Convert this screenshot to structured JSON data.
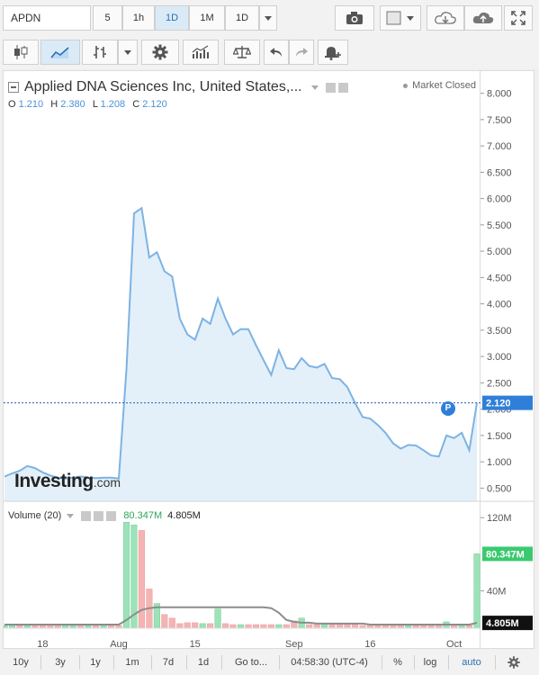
{
  "toolbar": {
    "symbol": "APDN",
    "intervals": [
      "5",
      "1h",
      "1D",
      "1M",
      "1D"
    ],
    "selected_interval": "1D"
  },
  "legend": {
    "title": "Applied DNA Sciences Inc, United States,...",
    "market_status": "Market Closed",
    "ohlc": {
      "o_label": "O",
      "o": "1.210",
      "h_label": "H",
      "h": "2.380",
      "l_label": "L",
      "l": "1.208",
      "c_label": "C",
      "c": "2.120"
    }
  },
  "logo": {
    "text": "Investing",
    "suffix": ".com"
  },
  "volume_legend": {
    "label": "Volume (20)",
    "volume": "80.347M",
    "ma": "4.805M"
  },
  "bottom_bar": {
    "ranges": [
      "10y",
      "3y",
      "1y",
      "1m",
      "7d",
      "1d"
    ],
    "goto": "Go to...",
    "clock": "04:58:30 (UTC-4)",
    "percent": "%",
    "log": "log",
    "auto": "auto"
  },
  "colors": {
    "line": "#7db3e3",
    "area": "#e3f0fa",
    "up_volume": "#9de2b8",
    "down_volume": "#f5b4b4",
    "ma_line": "#8c8c8c",
    "last_price_box": "#2f7fd8",
    "volume_box": "#3bc96f"
  },
  "chart_data": {
    "type": "area",
    "price_axis": {
      "ticks": [
        "8.000",
        "7.500",
        "7.000",
        "6.500",
        "6.000",
        "5.500",
        "5.000",
        "4.500",
        "4.000",
        "3.500",
        "3.000",
        "2.500",
        "2.000",
        "1.500",
        "1.000",
        "0.500"
      ],
      "ylim": [
        0.25,
        8.25
      ]
    },
    "volume_axis": {
      "ticks": [
        "120M",
        "40M"
      ],
      "ylim": [
        0,
        130
      ]
    },
    "x_tick_labels": [
      {
        "label": "18",
        "index": 5
      },
      {
        "label": "Aug",
        "index": 15
      },
      {
        "label": "15",
        "index": 25
      },
      {
        "label": "Sep",
        "index": 38
      },
      {
        "label": "16",
        "index": 48
      },
      {
        "label": "Oct",
        "index": 59
      }
    ],
    "close": [
      0.72,
      0.78,
      0.83,
      0.92,
      0.88,
      0.8,
      0.74,
      0.7,
      0.68,
      0.7,
      0.72,
      0.7,
      0.69,
      0.7,
      0.7,
      0.68,
      2.75,
      5.72,
      5.82,
      4.88,
      4.98,
      4.62,
      4.52,
      3.72,
      3.42,
      3.32,
      3.72,
      3.62,
      4.1,
      3.72,
      3.42,
      3.52,
      3.52,
      3.22,
      2.93,
      2.65,
      3.12,
      2.78,
      2.76,
      2.97,
      2.82,
      2.79,
      2.86,
      2.59,
      2.57,
      2.42,
      2.12,
      1.85,
      1.82,
      1.7,
      1.55,
      1.35,
      1.25,
      1.32,
      1.31,
      1.22,
      1.12,
      1.1,
      1.5,
      1.45,
      1.55,
      1.22,
      2.12
    ],
    "volume": [
      2,
      2,
      2,
      2,
      2,
      2,
      2,
      2,
      2,
      2,
      2,
      2,
      2,
      2,
      2,
      2,
      115,
      112,
      106,
      42,
      26,
      14,
      10,
      4,
      5,
      5,
      4,
      4,
      20,
      4,
      3,
      3,
      3,
      3,
      3,
      3,
      3,
      3,
      7,
      10,
      3,
      3,
      3,
      3,
      3,
      3,
      3,
      2,
      2,
      2,
      2,
      2,
      2,
      2,
      2,
      2,
      2,
      2,
      6,
      2,
      2,
      2,
      80.347
    ],
    "volume_up": [
      true,
      true,
      false,
      true,
      false,
      false,
      false,
      false,
      true,
      true,
      false,
      true,
      false,
      true,
      false,
      false,
      true,
      true,
      false,
      false,
      true,
      false,
      false,
      false,
      false,
      false,
      true,
      false,
      true,
      false,
      false,
      true,
      false,
      false,
      false,
      false,
      true,
      false,
      false,
      true,
      false,
      false,
      true,
      false,
      false,
      false,
      false,
      false,
      false,
      false,
      false,
      false,
      false,
      true,
      false,
      false,
      false,
      false,
      true,
      false,
      true,
      false,
      true
    ],
    "volume_ma": [
      3,
      3,
      3,
      3,
      3,
      3,
      3,
      3,
      3,
      3,
      3,
      3,
      3,
      3,
      3,
      3,
      8,
      14,
      19,
      21,
      22,
      22,
      22,
      22,
      22,
      22,
      22,
      22,
      22,
      22,
      22,
      22,
      22,
      22,
      22,
      21,
      16,
      8,
      6,
      5,
      5,
      4,
      4,
      4,
      4,
      4,
      4,
      4,
      3,
      3,
      3,
      3,
      3,
      3,
      3,
      3,
      3,
      3,
      3,
      3,
      3,
      3,
      4.805
    ],
    "last_price": "2.120",
    "last_volume": "80.347M",
    "last_ma": "4.805M"
  }
}
